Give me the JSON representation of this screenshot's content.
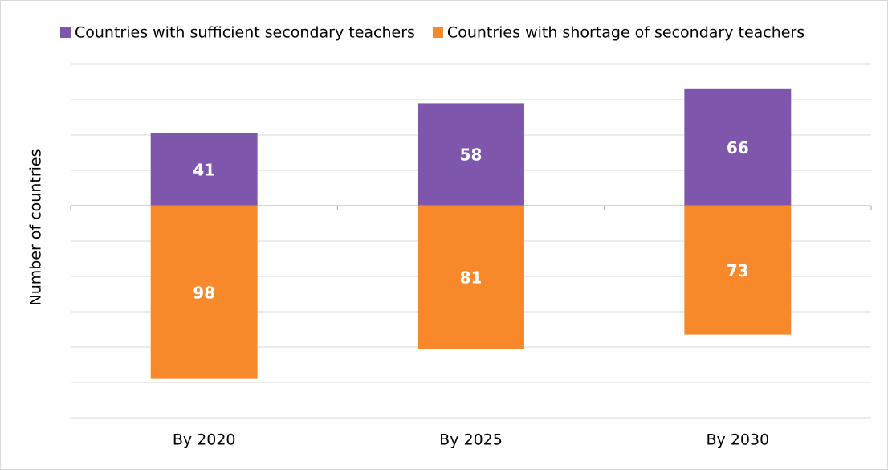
{
  "chart_data": {
    "type": "bar",
    "stacked": true,
    "y_label": "Number of countries",
    "categories": [
      "By 2020",
      "By 2025",
      "By 2030"
    ],
    "series": [
      {
        "name": "Countries with sufficient secondary teachers",
        "color": "#7e57ad",
        "values": [
          41,
          58,
          66
        ]
      },
      {
        "name": "Countries with shortage of secondary teachers",
        "color": "#f7892a",
        "values": [
          -98,
          -81,
          -73
        ],
        "value_labels": [
          "98",
          "81",
          "73"
        ]
      }
    ],
    "ylim": [
      -120,
      80
    ],
    "yticks": [
      -120,
      -100,
      -80,
      -60,
      -40,
      -20,
      0,
      20,
      40,
      60,
      80
    ],
    "grid": true,
    "legend": "top"
  }
}
